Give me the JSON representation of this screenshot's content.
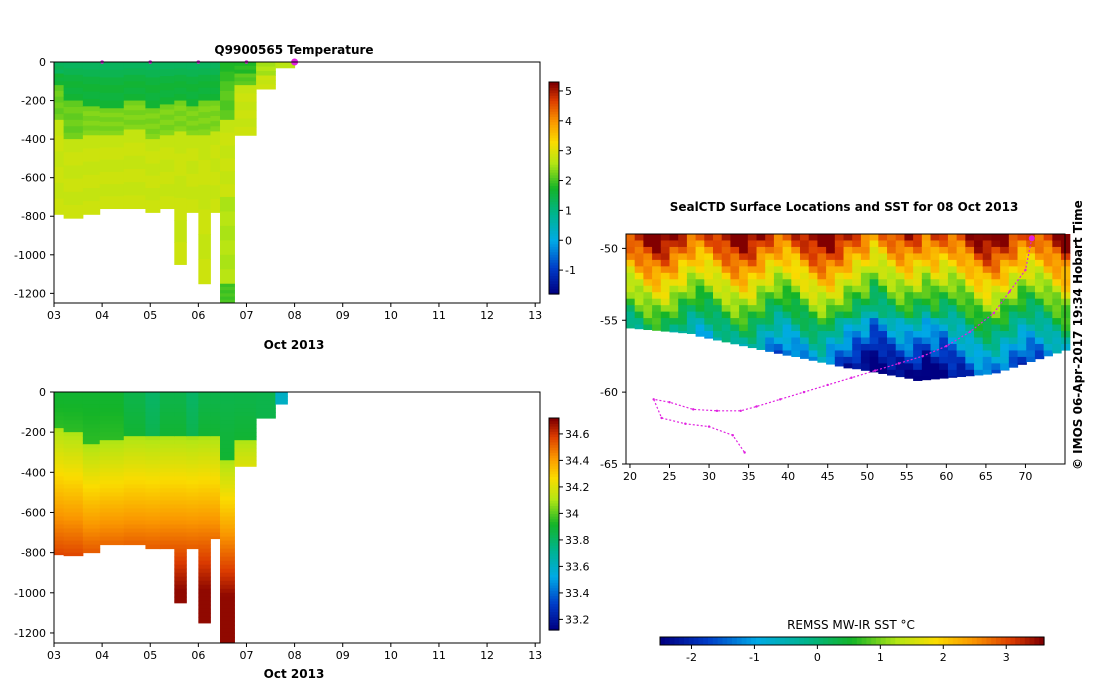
{
  "copyright": "© IMOS 06-Apr-2017 19:34 Hobart Time",
  "chart_data": [
    {
      "type": "heatmap",
      "title": "Q9900565  Temperature",
      "xlabel": "Oct 2013",
      "x_ticks": [
        "03",
        "04",
        "05",
        "06",
        "07",
        "08",
        "09",
        "10",
        "11",
        "12",
        "13"
      ],
      "y_ticks": [
        "0",
        "-200",
        "-400",
        "-600",
        "-800",
        "-1000",
        "-1200"
      ],
      "xlim": [
        3,
        13.1
      ],
      "ylim": [
        -1250,
        0
      ],
      "colorbar_ticks": [
        "5",
        "4",
        "3",
        "2",
        "1",
        "0",
        "-1"
      ],
      "colorbar_range": [
        -1.8,
        5.3
      ],
      "surface_markers_x": [
        4,
        5,
        6,
        7,
        8
      ],
      "profiles": [
        {
          "x0": 3.0,
          "x1": 3.2,
          "depth_max": 790,
          "layers": [
            [
              0,
              120,
              1.6
            ],
            [
              120,
              300,
              2.2
            ],
            [
              300,
              790,
              2.8
            ]
          ]
        },
        {
          "x0": 3.2,
          "x1": 3.6,
          "depth_max": 810,
          "layers": [
            [
              0,
              200,
              1.6
            ],
            [
              200,
              400,
              2.2
            ],
            [
              400,
              810,
              2.8
            ]
          ]
        },
        {
          "x0": 3.6,
          "x1": 3.95,
          "depth_max": 790,
          "layers": [
            [
              0,
              230,
              1.6
            ],
            [
              230,
              380,
              2.3
            ],
            [
              380,
              790,
              2.8
            ]
          ]
        },
        {
          "x0": 3.95,
          "x1": 4.45,
          "depth_max": 760,
          "layers": [
            [
              0,
              240,
              1.6
            ],
            [
              240,
              380,
              2.3
            ],
            [
              380,
              760,
              2.8
            ]
          ]
        },
        {
          "x0": 4.45,
          "x1": 4.9,
          "depth_max": 760,
          "layers": [
            [
              0,
              200,
              1.6
            ],
            [
              200,
              350,
              2.3
            ],
            [
              350,
              760,
              2.8
            ]
          ]
        },
        {
          "x0": 4.9,
          "x1": 5.2,
          "depth_max": 780,
          "layers": [
            [
              0,
              240,
              1.6
            ],
            [
              240,
              400,
              2.3
            ],
            [
              400,
              780,
              2.8
            ]
          ]
        },
        {
          "x0": 5.2,
          "x1": 5.5,
          "depth_max": 760,
          "layers": [
            [
              0,
              220,
              1.6
            ],
            [
              220,
              380,
              2.3
            ],
            [
              380,
              760,
              2.8
            ]
          ]
        },
        {
          "x0": 5.5,
          "x1": 5.75,
          "depth_max": 1050,
          "layers": [
            [
              0,
              200,
              1.6
            ],
            [
              200,
              360,
              2.3
            ],
            [
              360,
              1050,
              2.8
            ]
          ]
        },
        {
          "x0": 5.75,
          "x1": 6.0,
          "depth_max": 780,
          "layers": [
            [
              0,
              230,
              1.6
            ],
            [
              230,
              380,
              2.3
            ],
            [
              380,
              780,
              2.8
            ]
          ]
        },
        {
          "x0": 6.0,
          "x1": 6.25,
          "depth_max": 1150,
          "layers": [
            [
              0,
              200,
              1.6
            ],
            [
              200,
              380,
              2.3
            ],
            [
              380,
              1150,
              2.8
            ]
          ]
        },
        {
          "x0": 6.25,
          "x1": 6.45,
          "depth_max": 780,
          "layers": [
            [
              0,
              200,
              1.6
            ],
            [
              200,
              360,
              2.3
            ],
            [
              360,
              780,
              2.8
            ]
          ]
        },
        {
          "x0": 6.45,
          "x1": 6.75,
          "depth_max": 1250,
          "layers": [
            [
              0,
              300,
              2.1
            ],
            [
              300,
              700,
              2.8
            ],
            [
              700,
              1150,
              2.6
            ],
            [
              1150,
              1250,
              2.0
            ]
          ]
        },
        {
          "x0": 6.75,
          "x1": 7.2,
          "depth_max": 380,
          "layers": [
            [
              0,
              120,
              2.1
            ],
            [
              120,
              380,
              2.8
            ]
          ]
        },
        {
          "x0": 7.2,
          "x1": 7.6,
          "depth_max": 140,
          "layers": [
            [
              0,
              140,
              2.8
            ]
          ]
        },
        {
          "x0": 7.6,
          "x1": 8.0,
          "depth_max": 30,
          "layers": [
            [
              0,
              30,
              2.9
            ]
          ]
        }
      ]
    },
    {
      "type": "heatmap",
      "title": "",
      "xlabel": "Oct 2013",
      "x_ticks": [
        "03",
        "04",
        "05",
        "06",
        "07",
        "08",
        "09",
        "10",
        "11",
        "12",
        "13"
      ],
      "y_ticks": [
        "0",
        "-200",
        "-400",
        "-600",
        "-800",
        "-1000",
        "-1200"
      ],
      "xlim": [
        3,
        13.1
      ],
      "ylim": [
        -1250,
        0
      ],
      "colorbar_ticks": [
        "34.6",
        "34.4",
        "34.2",
        "34",
        "33.8",
        "33.6",
        "33.4",
        "33.2"
      ],
      "colorbar_range": [
        33.12,
        34.72
      ],
      "profiles": [
        {
          "x0": 3.0,
          "x1": 3.2,
          "depth_max": 810,
          "sal_top": 33.9,
          "halocline": 180
        },
        {
          "x0": 3.2,
          "x1": 3.6,
          "depth_max": 815,
          "sal_top": 33.9,
          "halocline": 200
        },
        {
          "x0": 3.6,
          "x1": 3.95,
          "depth_max": 800,
          "sal_top": 33.9,
          "halocline": 260
        },
        {
          "x0": 3.95,
          "x1": 4.45,
          "depth_max": 760,
          "sal_top": 33.9,
          "halocline": 240
        },
        {
          "x0": 4.45,
          "x1": 4.9,
          "depth_max": 760,
          "sal_top": 33.85,
          "halocline": 220
        },
        {
          "x0": 4.9,
          "x1": 5.2,
          "depth_max": 780,
          "sal_top": 33.8,
          "halocline": 230
        },
        {
          "x0": 5.2,
          "x1": 5.5,
          "depth_max": 780,
          "sal_top": 33.85,
          "halocline": 220
        },
        {
          "x0": 5.5,
          "x1": 5.75,
          "depth_max": 1050,
          "sal_top": 33.85,
          "halocline": 220
        },
        {
          "x0": 5.75,
          "x1": 6.0,
          "depth_max": 780,
          "sal_top": 33.8,
          "halocline": 230
        },
        {
          "x0": 6.0,
          "x1": 6.25,
          "depth_max": 1150,
          "sal_top": 33.85,
          "halocline": 220
        },
        {
          "x0": 6.25,
          "x1": 6.45,
          "depth_max": 730,
          "sal_top": 33.85,
          "halocline": 220
        },
        {
          "x0": 6.45,
          "x1": 6.75,
          "depth_max": 1250,
          "sal_top": 33.85,
          "halocline": 340
        },
        {
          "x0": 6.75,
          "x1": 7.2,
          "depth_max": 370,
          "sal_top": 33.85,
          "halocline": 240
        },
        {
          "x0": 7.2,
          "x1": 7.6,
          "depth_max": 130,
          "sal_top": 33.85,
          "halocline": 999
        },
        {
          "x0": 7.6,
          "x1": 7.85,
          "depth_max": 60,
          "sal_top": 33.6,
          "halocline": 999
        }
      ]
    },
    {
      "type": "heatmap",
      "title": "SealCTD Surface Locations and SST for 08 Oct 2013",
      "x_ticks": [
        "20",
        "25",
        "30",
        "35",
        "40",
        "45",
        "50",
        "55",
        "60",
        "65",
        "70"
      ],
      "y_ticks": [
        "-50",
        "-55",
        "-60",
        "-65"
      ],
      "xlim": [
        19.5,
        75
      ],
      "ylim": [
        -65,
        -49
      ],
      "colorbar_label": "REMSS MW-IR SST °C",
      "colorbar_ticks": [
        "-2",
        "-1",
        "0",
        "1",
        "2",
        "3"
      ],
      "colorbar_range": [
        -2.5,
        3.6
      ],
      "track_lon": [
        70.8,
        70,
        68,
        66,
        63,
        60,
        57,
        54,
        51,
        48,
        45,
        42,
        39,
        36,
        34,
        31,
        28,
        25,
        23,
        24,
        27,
        30,
        33,
        34.5
      ],
      "track_lat": [
        -49.3,
        -51.5,
        -53,
        -54.5,
        -55.8,
        -56.8,
        -57.5,
        -58,
        -58.5,
        -59,
        -59.5,
        -60,
        -60.5,
        -61,
        -61.3,
        -61.3,
        -61.2,
        -60.7,
        -60.5,
        -61.8,
        -62.2,
        -62.4,
        -63,
        -64.2
      ]
    }
  ]
}
